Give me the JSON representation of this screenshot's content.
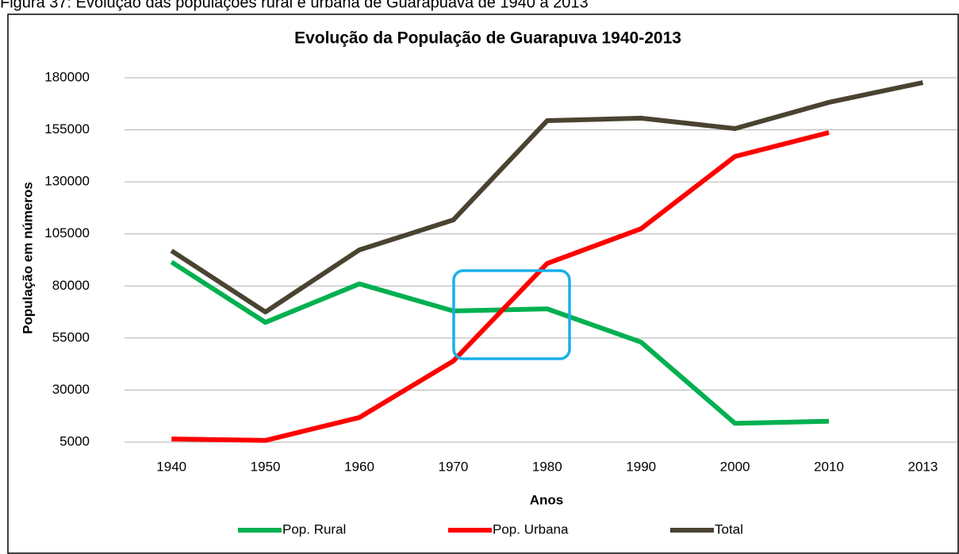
{
  "caption": "Figura 37: Evolução das populações rural e urbana de Guarapuava de 1940 a 2013",
  "chart_data": {
    "type": "line",
    "title": "Evolução da População de Guarapuva 1940-2013",
    "x_label": "Anos",
    "y_label": "População em números",
    "categories": [
      "1940",
      "1950",
      "1960",
      "1970",
      "1980",
      "1990",
      "2000",
      "2010",
      "2013"
    ],
    "series": [
      {
        "name": "Pop. Rural",
        "color": "#00b050",
        "values": [
          91500,
          62500,
          81000,
          68000,
          69000,
          53000,
          14000,
          15000,
          null
        ]
      },
      {
        "name": "Pop. Urbana",
        "color": "#ff0000",
        "values": [
          6500,
          5800,
          16800,
          43900,
          90800,
          107500,
          142200,
          153700,
          null
        ]
      },
      {
        "name": "Total",
        "color": "#4a4331",
        "values": [
          96900,
          67500,
          97300,
          111700,
          159400,
          160600,
          155600,
          168200,
          177700
        ]
      }
    ],
    "ylim": [
      5000,
      180000
    ],
    "yticks": [
      5000,
      30000,
      55000,
      80000,
      105000,
      130000,
      155000,
      180000
    ],
    "grid": true,
    "legend": "bottom"
  }
}
